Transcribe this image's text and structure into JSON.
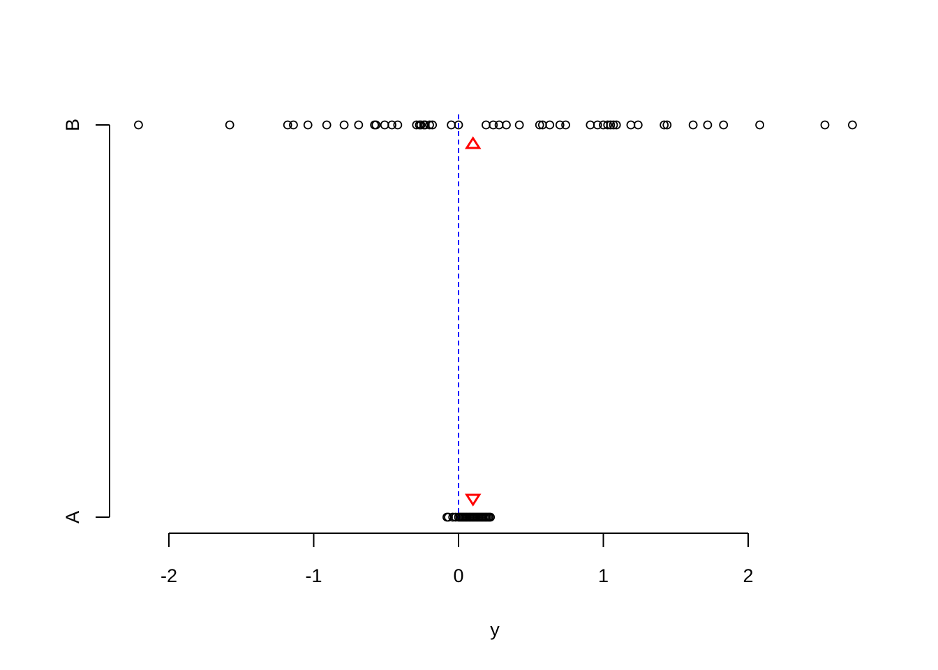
{
  "chart_data": {
    "type": "scatter",
    "title": "",
    "xlabel": "y",
    "ylabel": "",
    "xlim": [
      -2.2,
      2.7
    ],
    "x_ticks": [
      -2,
      -1,
      0,
      1,
      2
    ],
    "x_tick_labels": [
      "-2",
      "-1",
      "0",
      "1",
      "2"
    ],
    "categories": [
      "A",
      "B"
    ],
    "grid": false,
    "legend": "none",
    "series": [
      {
        "category": "A",
        "marker": "open-circle",
        "color": "#000000",
        "values": [
          -0.08,
          -0.07,
          -0.04,
          -0.02,
          0.0,
          0.01,
          0.02,
          0.03,
          0.04,
          0.05,
          0.06,
          0.07,
          0.08,
          0.09,
          0.1,
          0.11,
          0.12,
          0.13,
          0.14,
          0.15,
          0.16,
          0.17,
          0.18,
          0.19,
          0.2,
          0.21,
          0.22
        ]
      },
      {
        "category": "B",
        "marker": "open-circle",
        "color": "#000000",
        "values": [
          -2.21,
          -1.58,
          -1.18,
          -1.14,
          -1.04,
          -0.91,
          -0.79,
          -0.69,
          -0.58,
          -0.57,
          -0.51,
          -0.46,
          -0.42,
          -0.29,
          -0.27,
          -0.26,
          -0.24,
          -0.23,
          -0.2,
          -0.18,
          -0.05,
          0.0,
          0.19,
          0.24,
          0.28,
          0.33,
          0.42,
          0.56,
          0.58,
          0.63,
          0.7,
          0.74,
          0.91,
          0.96,
          1.0,
          1.03,
          1.05,
          1.07,
          1.09,
          1.19,
          1.24,
          1.42,
          1.44,
          1.62,
          1.72,
          1.83,
          2.08,
          2.53,
          2.72
        ]
      }
    ],
    "markers": [
      {
        "category": "B",
        "shape": "triangle-up",
        "color": "#ff0000",
        "x": 0.1,
        "position": "below-row"
      },
      {
        "category": "A",
        "shape": "triangle-down",
        "color": "#ff0000",
        "x": 0.1,
        "position": "above-row"
      }
    ],
    "reference_line": {
      "x": 0,
      "color": "#0000ff",
      "style": "dashed"
    }
  }
}
